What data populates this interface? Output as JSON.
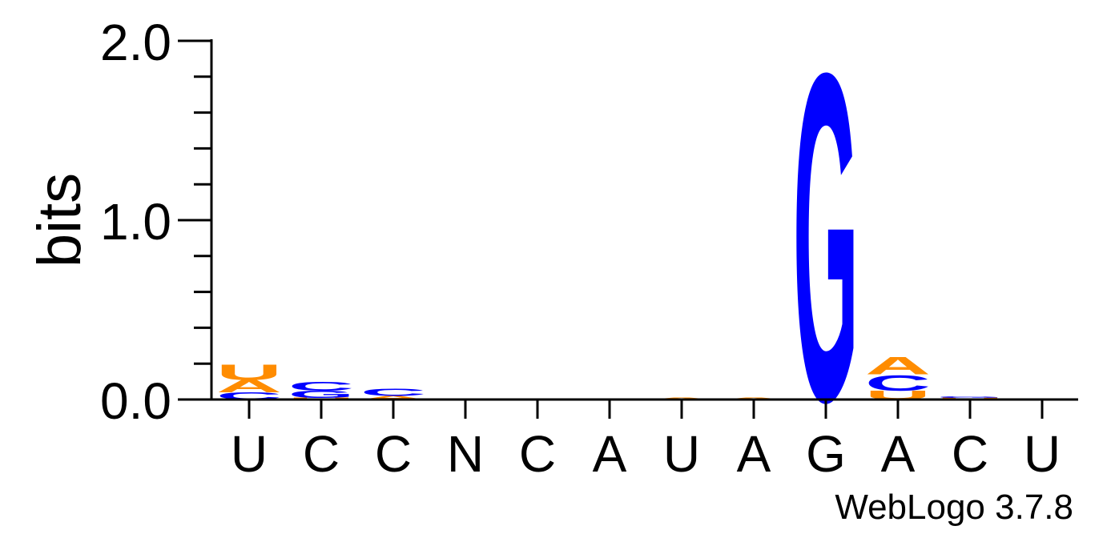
{
  "chart_data": {
    "type": "sequence-logo",
    "ylabel": "bits",
    "ylim": [
      0,
      2.0
    ],
    "yticks": [
      "0.0",
      "1.0",
      "2.0"
    ],
    "xticks": [
      "U",
      "C",
      "C",
      "N",
      "C",
      "A",
      "U",
      "A",
      "G",
      "A",
      "C",
      "U"
    ],
    "credit": "WebLogo 3.7.8",
    "colors": {
      "A": "#ff8c00",
      "U": "#ff8c00",
      "C": "#0000ff",
      "G": "#0000ff"
    },
    "positions": [
      {
        "label": "U",
        "stack": [
          {
            "letter": "C",
            "bits": 0.04
          },
          {
            "letter": "A",
            "bits": 0.07
          },
          {
            "letter": "U",
            "bits": 0.09
          }
        ]
      },
      {
        "label": "C",
        "stack": [
          {
            "letter": "U",
            "bits": 0.01
          },
          {
            "letter": "G",
            "bits": 0.04
          },
          {
            "letter": "C",
            "bits": 0.05
          }
        ]
      },
      {
        "label": "C",
        "stack": [
          {
            "letter": "A",
            "bits": 0.02
          },
          {
            "letter": "C",
            "bits": 0.04
          }
        ]
      },
      {
        "label": "N",
        "stack": []
      },
      {
        "label": "C",
        "stack": []
      },
      {
        "label": "A",
        "stack": []
      },
      {
        "label": "U",
        "stack": [
          {
            "letter": "A",
            "bits": 0.01
          }
        ]
      },
      {
        "label": "A",
        "stack": [
          {
            "letter": "A",
            "bits": 0.01
          }
        ]
      },
      {
        "label": "G",
        "stack": [
          {
            "letter": "G",
            "bits": 1.87
          }
        ]
      },
      {
        "label": "A",
        "stack": [
          {
            "letter": "U",
            "bits": 0.05
          },
          {
            "letter": "C",
            "bits": 0.09
          },
          {
            "letter": "A",
            "bits": 0.1
          }
        ]
      },
      {
        "label": "C",
        "stack": [
          {
            "letter": "U",
            "bits": 0.01
          },
          {
            "letter": "G",
            "bits": 0.01
          }
        ]
      },
      {
        "label": "U",
        "stack": []
      }
    ]
  }
}
